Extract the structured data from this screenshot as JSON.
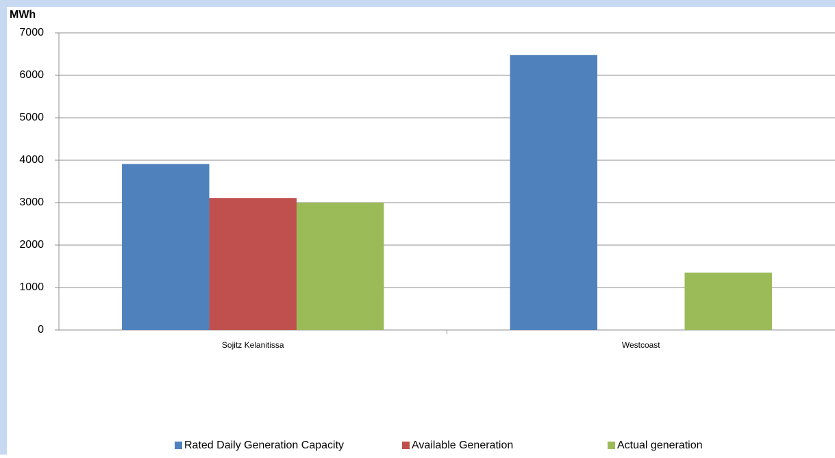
{
  "chart_data": {
    "type": "bar",
    "y_label": "MWh",
    "categories": [
      "Sojitz Kelanitissa",
      "Westcoast"
    ],
    "series": [
      {
        "name": "Rated Daily Generation Capacity",
        "color": "#4f81bd",
        "values": [
          3910,
          6480
        ]
      },
      {
        "name": "Available Generation",
        "color": "#c0504d",
        "values": [
          3110,
          0
        ]
      },
      {
        "name": "Actual generation",
        "color": "#9bbb59",
        "values": [
          3000,
          1350
        ]
      }
    ],
    "ylim": [
      0,
      7000
    ],
    "yticks": [
      0,
      1000,
      2000,
      3000,
      4000,
      5000,
      6000,
      7000
    ],
    "grid": true,
    "legend": "bottom"
  }
}
